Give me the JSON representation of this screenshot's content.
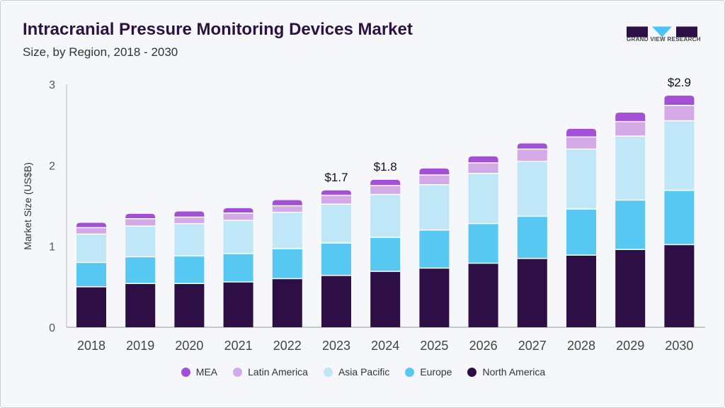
{
  "header": {
    "title": "Intracranial Pressure Monitoring Devices Market",
    "subtitle": "Size, by Region, 2018 - 2030",
    "logo_text": "GRAND VIEW RESEARCH"
  },
  "chart_data": {
    "type": "bar",
    "stacked": true,
    "title": "Intracranial Pressure Monitoring Devices Market",
    "subtitle": "Size, by Region, 2018 - 2030",
    "xlabel": "",
    "ylabel": "Market Size (US$B)",
    "ylim": [
      0,
      3
    ],
    "yticks": [
      "0",
      "1",
      "2",
      "3"
    ],
    "categories": [
      "2018",
      "2019",
      "2020",
      "2021",
      "2022",
      "2023",
      "2024",
      "2025",
      "2026",
      "2027",
      "2028",
      "2029",
      "2030"
    ],
    "legend_position": "bottom",
    "series": [
      {
        "name": "North America",
        "color": "#2d0f45",
        "values": [
          0.5,
          0.54,
          0.54,
          0.56,
          0.6,
          0.64,
          0.69,
          0.73,
          0.79,
          0.85,
          0.89,
          0.96,
          1.02
        ]
      },
      {
        "name": "Europe",
        "color": "#57c8f2",
        "values": [
          0.3,
          0.33,
          0.34,
          0.35,
          0.37,
          0.4,
          0.42,
          0.47,
          0.49,
          0.52,
          0.57,
          0.61,
          0.67
        ]
      },
      {
        "name": "Asia Pacific",
        "color": "#bfe7f8",
        "values": [
          0.35,
          0.38,
          0.4,
          0.41,
          0.45,
          0.48,
          0.53,
          0.56,
          0.62,
          0.68,
          0.74,
          0.79,
          0.86
        ]
      },
      {
        "name": "Latin America",
        "color": "#d4a9e8",
        "values": [
          0.08,
          0.09,
          0.08,
          0.09,
          0.08,
          0.11,
          0.11,
          0.12,
          0.13,
          0.15,
          0.15,
          0.18,
          0.19
        ]
      },
      {
        "name": "MEA",
        "color": "#a34fd6",
        "values": [
          0.06,
          0.06,
          0.07,
          0.06,
          0.07,
          0.06,
          0.07,
          0.08,
          0.08,
          0.07,
          0.1,
          0.11,
          0.12
        ]
      }
    ],
    "annotations": [
      {
        "category": "2023",
        "label": "$1.7"
      },
      {
        "category": "2024",
        "label": "$1.8"
      },
      {
        "category": "2030",
        "label": "$2.9"
      }
    ],
    "legend_order": [
      "MEA",
      "Latin America",
      "Asia Pacific",
      "Europe",
      "North America"
    ]
  }
}
